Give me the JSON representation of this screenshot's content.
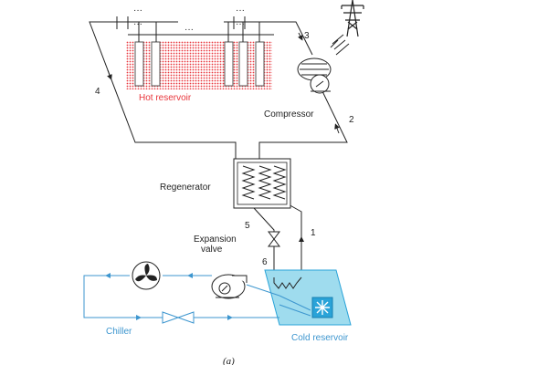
{
  "labels": {
    "hot_reservoir": "Hot reservoir",
    "compressor": "Compressor",
    "regenerator": "Regenerator",
    "expansion_valve_line1": "Expansion",
    "expansion_valve_line2": "valve",
    "chiller": "Chiller",
    "cold_reservoir": "Cold reservoir",
    "caption": "(a)"
  },
  "state_points": [
    "1",
    "2",
    "3",
    "4",
    "5",
    "6"
  ],
  "ellipsis": "···",
  "icons": [
    "transmission-tower-icon",
    "snowflake-icon",
    "fan-icon",
    "pump-icon",
    "compressor-icon",
    "valve-icon"
  ],
  "colors": {
    "hot": "#e8363c",
    "cold_fill": "#9fdcee",
    "cold_edge": "#2aa3d8",
    "chiller_loop": "#3d96cf",
    "pipe": "#222222"
  }
}
